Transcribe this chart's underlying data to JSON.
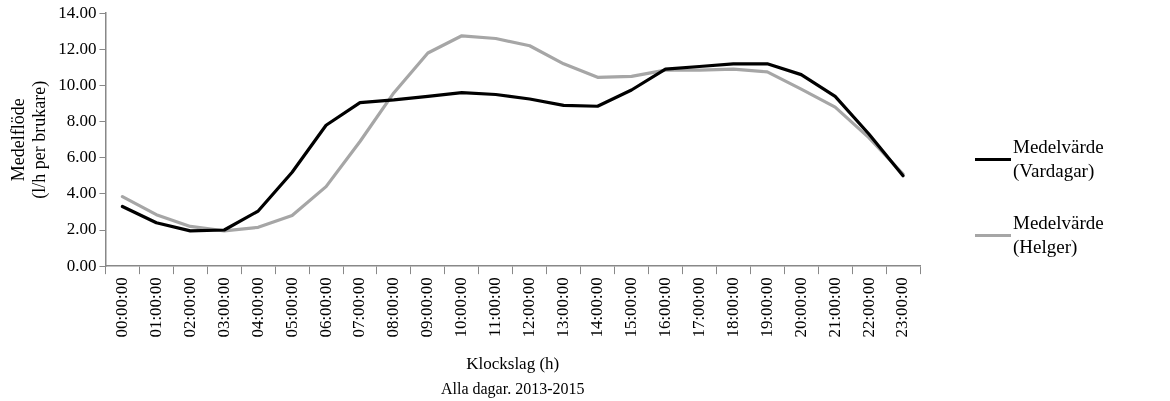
{
  "chart_data": {
    "type": "line",
    "xlabel": "Klockslag (h)",
    "ylabel": "Medelflöde\n(l/h per brukare)",
    "annotations": [
      "Alla dagar. 2013-2015"
    ],
    "categories": [
      "00:00:00",
      "01:00:00",
      "02:00:00",
      "03:00:00",
      "04:00:00",
      "05:00:00",
      "06:00:00",
      "07:00:00",
      "08:00:00",
      "09:00:00",
      "10:00:00",
      "11:00:00",
      "12:00:00",
      "13:00:00",
      "14:00:00",
      "15:00:00",
      "16:00:00",
      "17:00:00",
      "18:00:00",
      "19:00:00",
      "20:00:00",
      "21:00:00",
      "22:00:00",
      "23:00:00"
    ],
    "series": [
      {
        "name": "Medelvärde\n(Vardagar)",
        "color": "#000000",
        "values": [
          3.3,
          2.4,
          1.95,
          2.0,
          3.05,
          5.2,
          7.8,
          9.05,
          9.2,
          9.4,
          9.6,
          9.5,
          9.25,
          8.9,
          8.85,
          9.75,
          10.9,
          11.05,
          11.2,
          11.2,
          10.6,
          9.4,
          7.3,
          5.0
        ]
      },
      {
        "name": "Medelvärde\n(Helger)",
        "color": "#a6a6a6",
        "values": [
          3.85,
          2.85,
          2.2,
          1.95,
          2.15,
          2.8,
          4.4,
          6.9,
          9.6,
          11.8,
          12.75,
          12.6,
          12.2,
          11.2,
          10.45,
          10.5,
          10.85,
          10.85,
          10.9,
          10.75,
          9.8,
          8.8,
          7.1,
          5.1
        ]
      }
    ],
    "ylim": [
      0,
      14
    ],
    "yticks": [
      {
        "value": 0,
        "label": "0.00"
      },
      {
        "value": 2,
        "label": "2.00"
      },
      {
        "value": 4,
        "label": "4.00"
      },
      {
        "value": 6,
        "label": "6.00"
      },
      {
        "value": 8,
        "label": "8.00"
      },
      {
        "value": 10,
        "label": "10.00"
      },
      {
        "value": 12,
        "label": "12.00"
      },
      {
        "value": 14,
        "label": "14.00"
      }
    ],
    "grid": false,
    "legend": "right",
    "marker": "none",
    "line_style": "solid"
  }
}
